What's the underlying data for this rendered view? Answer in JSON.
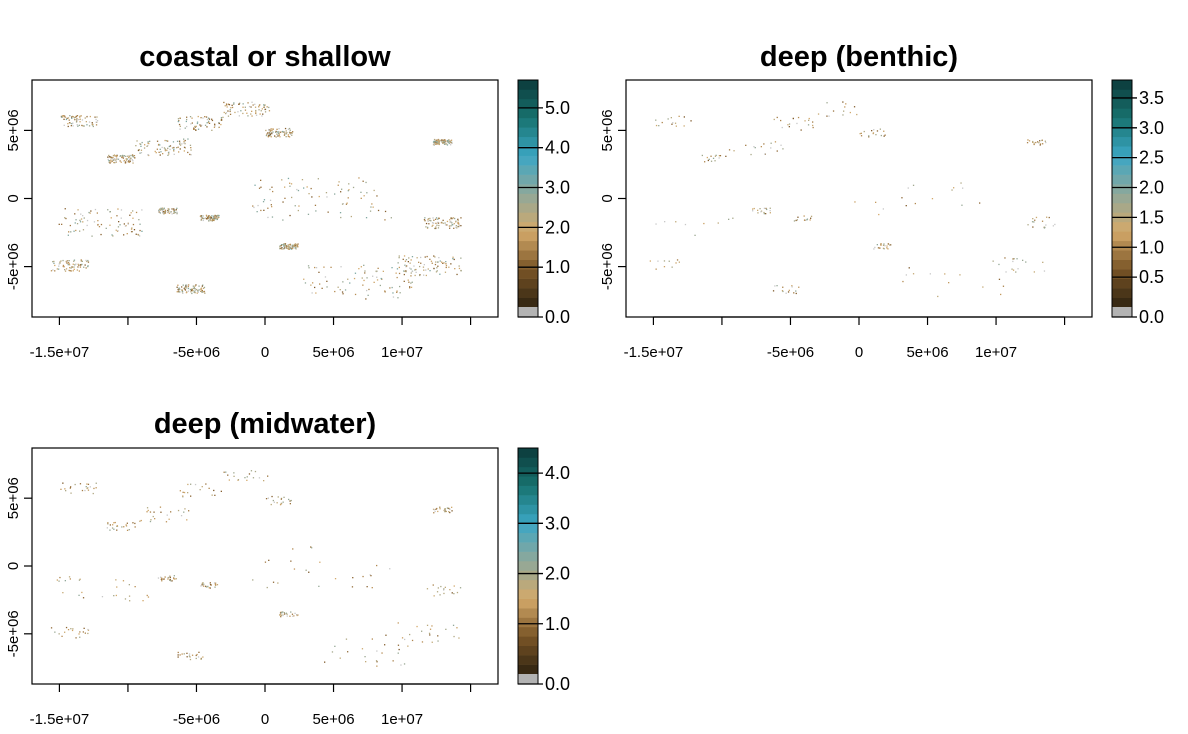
{
  "panels": [
    {
      "title": "coastal or shallow",
      "x_ticks": [
        {
          "value": -15000000,
          "label": "-1.5e+07"
        },
        {
          "value": -10000000,
          "label": ""
        },
        {
          "value": -5000000,
          "label": "-5e+06"
        },
        {
          "value": 0,
          "label": "0"
        },
        {
          "value": 5000000,
          "label": "5e+06"
        },
        {
          "value": 10000000,
          "label": "1e+07"
        },
        {
          "value": 15000000,
          "label": ""
        }
      ],
      "y_ticks": [
        {
          "value": 5000000,
          "label": "5e+06"
        },
        {
          "value": 0,
          "label": "0"
        },
        {
          "value": -5000000,
          "label": "-5e+06"
        }
      ],
      "colorbar": {
        "min": 0.0,
        "max": 5.7,
        "labels": [
          "0.0",
          "1.0",
          "2.0",
          "3.0",
          "4.0",
          "5.0"
        ]
      }
    },
    {
      "title": "deep (benthic)",
      "x_ticks": [
        {
          "value": -15000000,
          "label": "-1.5e+07"
        },
        {
          "value": -10000000,
          "label": ""
        },
        {
          "value": -5000000,
          "label": "-5e+06"
        },
        {
          "value": 0,
          "label": "0"
        },
        {
          "value": 5000000,
          "label": "5e+06"
        },
        {
          "value": 10000000,
          "label": "1e+07"
        },
        {
          "value": 15000000,
          "label": ""
        }
      ],
      "y_ticks": [
        {
          "value": 5000000,
          "label": "5e+06"
        },
        {
          "value": 0,
          "label": "0"
        },
        {
          "value": -5000000,
          "label": "-5e+06"
        }
      ],
      "colorbar": {
        "min": 0.0,
        "max": 3.8,
        "labels": [
          "0.0",
          "0.5",
          "1.0",
          "1.5",
          "2.0",
          "2.5",
          "3.0",
          "3.5"
        ]
      }
    },
    {
      "title": "deep (midwater)",
      "x_ticks": [
        {
          "value": -15000000,
          "label": "-1.5e+07"
        },
        {
          "value": -10000000,
          "label": ""
        },
        {
          "value": -5000000,
          "label": "-5e+06"
        },
        {
          "value": 0,
          "label": "0"
        },
        {
          "value": 5000000,
          "label": "5e+06"
        },
        {
          "value": 10000000,
          "label": "1e+07"
        },
        {
          "value": 15000000,
          "label": ""
        }
      ],
      "y_ticks": [
        {
          "value": 5000000,
          "label": "5e+06"
        },
        {
          "value": 0,
          "label": "0"
        },
        {
          "value": -5000000,
          "label": "-5e+06"
        }
      ],
      "colorbar": {
        "min": 0.0,
        "max": 4.5,
        "labels": [
          "0.0",
          "1.0",
          "2.0",
          "3.0",
          "4.0"
        ]
      }
    }
  ],
  "map_extent": {
    "x": [
      -17000000,
      17000000
    ],
    "y": [
      -8700000,
      8700000
    ]
  },
  "palette": {
    "zero": "#b3b3b3",
    "stops": [
      "#2e2310",
      "#7a5527",
      "#d4a96a",
      "#8fa89a",
      "#3ba6c4",
      "#17726f",
      "#0b3a3a"
    ]
  }
}
